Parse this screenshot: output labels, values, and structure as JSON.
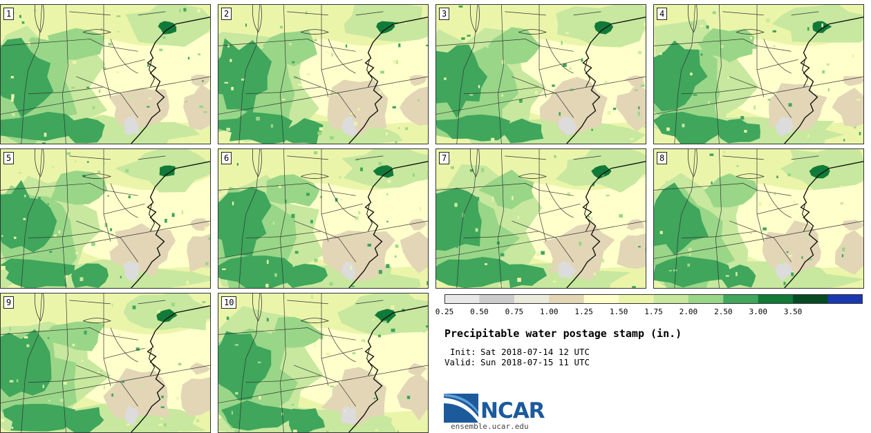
{
  "title": "Precipitable water postage stamp (in.)",
  "init_label": "Init:",
  "init_value": "Sat 2018-07-14 12 UTC",
  "valid_label": "Valid:",
  "valid_value": "Sun 2018-07-15 11 UTC",
  "logo": {
    "text": "NCAR",
    "url": "ensemble.ucar.edu"
  },
  "members": [
    "1",
    "2",
    "3",
    "4",
    "5",
    "6",
    "7",
    "8",
    "9",
    "10"
  ],
  "colorbar": {
    "ticks": [
      "0.25",
      "0.50",
      "0.75",
      "1.00",
      "1.25",
      "1.50",
      "1.75",
      "2.00",
      "2.50",
      "3.00",
      "3.50"
    ],
    "colors": [
      "#e8e8e8",
      "#cccccc",
      "#ebebdc",
      "#e2d6b6",
      "#ffffcc",
      "#ebf5aa",
      "#c7e89e",
      "#99d688",
      "#3fa65c",
      "#127a38",
      "#064b23",
      "#1a39b0"
    ]
  },
  "map_colors": {
    "light": "#ffffcc",
    "tan": "#e2d6b6",
    "gray": "#dcdcdc",
    "pale_green": "#ebf5aa",
    "light_green": "#c7e89e",
    "mid_green": "#99d688",
    "green": "#3fa65c",
    "dark_green": "#127a38"
  }
}
